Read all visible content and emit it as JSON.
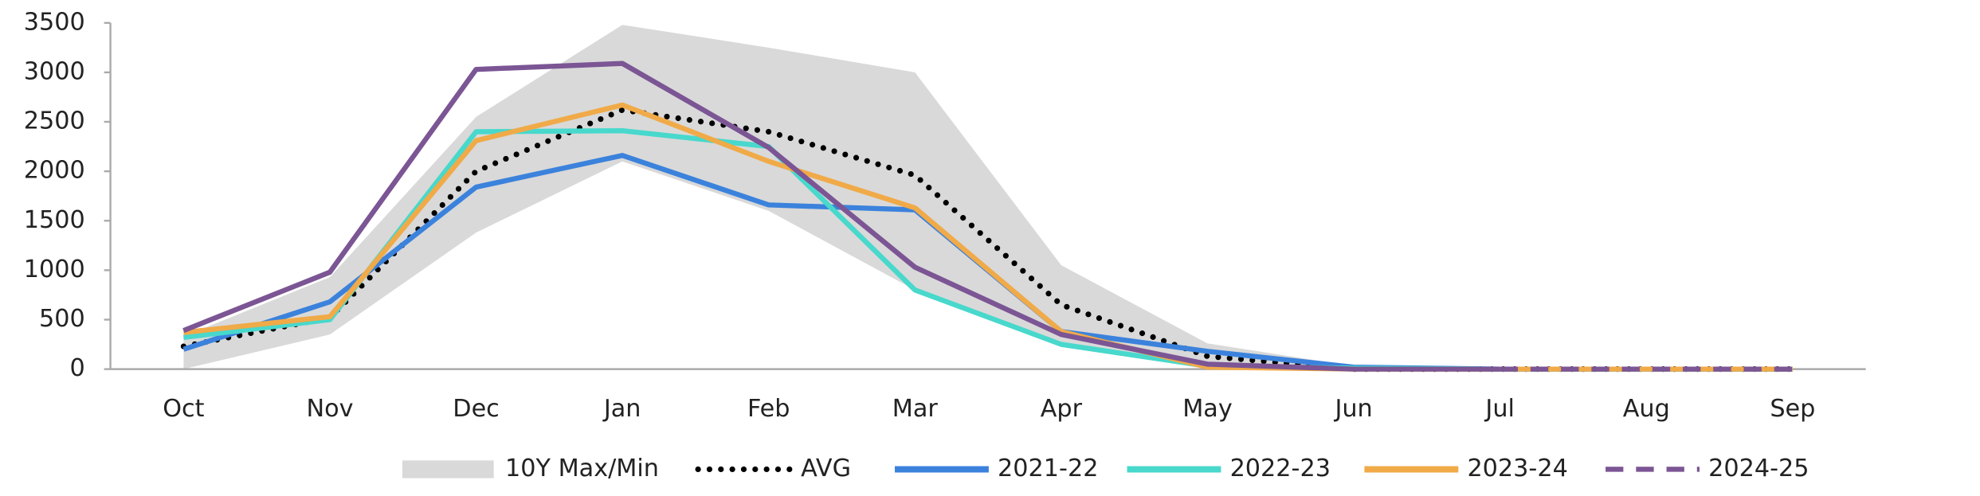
{
  "chart_data": {
    "type": "line",
    "categories": [
      "Oct",
      "Nov",
      "Dec",
      "Jan",
      "Feb",
      "Mar",
      "Apr",
      "May",
      "Jun",
      "Jul",
      "Aug",
      "Sep"
    ],
    "ylim": [
      0,
      3500
    ],
    "yticks": [
      0,
      500,
      1000,
      1500,
      2000,
      2500,
      3000,
      3500
    ],
    "series": [
      {
        "name": "10Y Max/Min",
        "color": "#d9d9d9",
        "style": "band",
        "max": [
          330,
          930,
          2550,
          3480,
          3250,
          3000,
          1050,
          260,
          30,
          0,
          0,
          0
        ],
        "min": [
          0,
          350,
          1380,
          2100,
          1600,
          800,
          250,
          0,
          0,
          0,
          0,
          0
        ]
      },
      {
        "name": "AVG",
        "color": "#000000",
        "style": "dotted",
        "values": [
          230,
          520,
          2000,
          2620,
          2400,
          1960,
          650,
          130,
          0,
          0,
          0,
          0
        ]
      },
      {
        "name": "2021-22",
        "color": "#3b82dc",
        "style": "solid",
        "values": [
          200,
          680,
          1840,
          2160,
          1660,
          1610,
          380,
          180,
          20,
          0,
          0,
          0
        ]
      },
      {
        "name": "2022-23",
        "color": "#48d8cc",
        "style": "solid",
        "values": [
          320,
          500,
          2400,
          2410,
          2250,
          800,
          250,
          30,
          10,
          0,
          0,
          0
        ]
      },
      {
        "name": "2023-24",
        "color": "#f0aa48",
        "style": "solid",
        "values": [
          370,
          530,
          2310,
          2670,
          2100,
          1630,
          380,
          20,
          0,
          0,
          0,
          0
        ]
      },
      {
        "name": "2024-25",
        "color": "#7b5594",
        "style": "dashed",
        "dash_from": 9,
        "values": [
          390,
          980,
          3030,
          3090,
          2240,
          1030,
          350,
          50,
          0,
          0,
          0,
          0
        ]
      }
    ],
    "legend": "bottom"
  }
}
